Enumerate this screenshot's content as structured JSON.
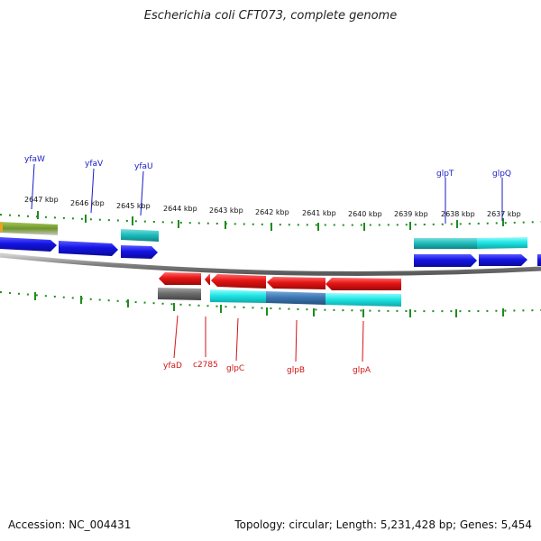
{
  "title": "Escherichia coli CFT073, complete genome",
  "footer": {
    "accession": "Accession: NC_004431",
    "topology": "Topology: circular; Length: 5,231,428 bp; Genes: 5,454"
  },
  "kbp_labels": [
    "2647 kbp",
    "2646 kbp",
    "2645 kbp",
    "2644 kbp",
    "2643 kbp",
    "2642 kbp",
    "2641 kbp",
    "2640 kbp",
    "2639 kbp",
    "2638 kbp",
    "2637 kbp"
  ],
  "genes_top": [
    "yfaW",
    "yfaV",
    "yfaU",
    "glpT",
    "glpQ"
  ],
  "genes_bottom": [
    "yfaD",
    "c2785",
    "glpC",
    "glpB",
    "glpA"
  ],
  "colors": {
    "forward_gene": "#1414e6",
    "reverse_gene": "#e61414",
    "cds_cyan": "#1ee6e6",
    "cds_teal": "#1ebebe",
    "cds_steel": "#3c78b4",
    "cds_gray": "#6e6e6e",
    "cds_olive": "#6e9628",
    "tick": "#1e8c1e",
    "backbone": "#808080"
  }
}
